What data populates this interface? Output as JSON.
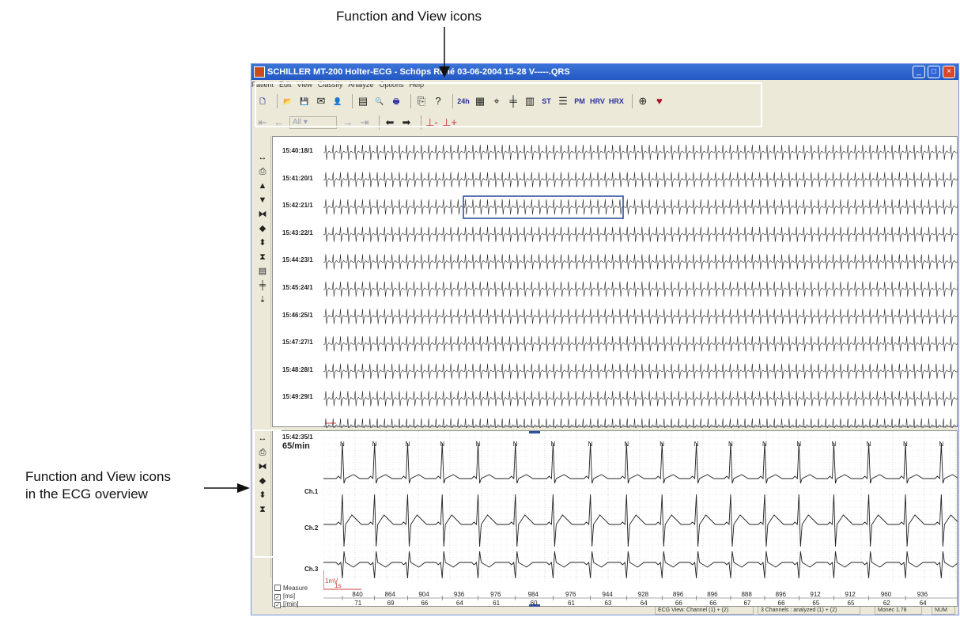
{
  "callouts": {
    "top": "Function and View icons",
    "left_line1": "Function and View icons",
    "left_line2": "in the ECG overview"
  },
  "window": {
    "title": "SCHILLER MT-200 Holter-ECG - Schöps René 03-06-2004 15-28 V-----.QRS",
    "controls": [
      "minimize",
      "maximize",
      "close"
    ]
  },
  "menu": [
    "Patient",
    "Edit",
    "View",
    "Classify",
    "Analyze",
    "Options",
    "Help"
  ],
  "toolbar1": [
    {
      "name": "new-icon",
      "glyph": "🗋"
    },
    {
      "name": "open-icon",
      "glyph": "📂"
    },
    {
      "name": "save-icon",
      "glyph": "💾"
    },
    {
      "name": "mail-icon",
      "glyph": "✉"
    },
    {
      "name": "patient-icon",
      "glyph": "👤"
    },
    {
      "name": "report-icon",
      "glyph": "▤"
    },
    {
      "name": "print-preview-icon",
      "glyph": "🔍"
    },
    {
      "name": "print-icon",
      "glyph": "🖶"
    },
    {
      "name": "export-icon",
      "glyph": "⎘"
    },
    {
      "name": "help-icon",
      "glyph": "?"
    },
    {
      "name": "24h-icon",
      "glyph": "24h"
    },
    {
      "name": "table-icon",
      "glyph": "▦"
    },
    {
      "name": "find-icon",
      "glyph": "⌖"
    },
    {
      "name": "crosshair-icon",
      "glyph": "╪"
    },
    {
      "name": "bar-chart-icon",
      "glyph": "▥"
    },
    {
      "name": "st-icon",
      "glyph": "ST"
    },
    {
      "name": "layers-icon",
      "glyph": "☰"
    },
    {
      "name": "pm-icon",
      "glyph": "PM"
    },
    {
      "name": "hrv-icon",
      "glyph": "HRV"
    },
    {
      "name": "hrx-icon",
      "glyph": "HRX"
    },
    {
      "name": "zoom-icon",
      "glyph": "⊕"
    },
    {
      "name": "heart-icon",
      "glyph": "♥"
    }
  ],
  "toolbar2": {
    "dropdown_value": "All",
    "buttons": [
      {
        "name": "first-icon",
        "glyph": "⇤"
      },
      {
        "name": "prev-icon",
        "glyph": "←"
      },
      {
        "name": "next-icon",
        "glyph": "→"
      },
      {
        "name": "last-icon",
        "glyph": "⇥"
      },
      {
        "name": "back-icon",
        "glyph": "⬅"
      },
      {
        "name": "forward-icon",
        "glyph": "➡"
      },
      {
        "name": "minus-icon",
        "glyph": "⊥-"
      },
      {
        "name": "plus-icon",
        "glyph": "⊥+"
      }
    ]
  },
  "strip_times": [
    "15:40:18/1",
    "15:41:20/1",
    "15:42:21/1",
    "15:43:22/1",
    "15:44:23/1",
    "15:45:24/1",
    "15:46:25/1",
    "15:47:27/1",
    "15:48:28/1",
    "15:49:29/1"
  ],
  "overview": {
    "time": "15:42:35/1",
    "heart_rate": "65/min",
    "channels": [
      "Ch.1",
      "Ch.2",
      "Ch.3"
    ],
    "beat_label": "N",
    "scale_mv": "1mV",
    "scale_s": "1s",
    "checkboxes": [
      {
        "label": "Measure",
        "checked": false
      },
      {
        "label": "[ms]",
        "checked": true
      },
      {
        "label": "[/min]",
        "checked": true
      }
    ],
    "rr_ms": [
      "840",
      "864",
      "904",
      "936",
      "976",
      "984",
      "976",
      "944",
      "928",
      "896",
      "896",
      "888",
      "896",
      "912",
      "912",
      "960",
      "936"
    ],
    "rate_min": [
      "71",
      "69",
      "66",
      "64",
      "61",
      "60",
      "61",
      "63",
      "64",
      "66",
      "66",
      "67",
      "66",
      "65",
      "65",
      "62",
      "64"
    ]
  },
  "status": [
    "ECG View: Channel (1) + (2)",
    "3 Channels : analyzed (1) + (2)",
    "Monec 1.78",
    "NUM"
  ],
  "colors": {
    "titlebar": "#2458c4",
    "selection": "#2f4fa0",
    "scale": "#d23a3a",
    "grid": "#bcbcbc"
  }
}
